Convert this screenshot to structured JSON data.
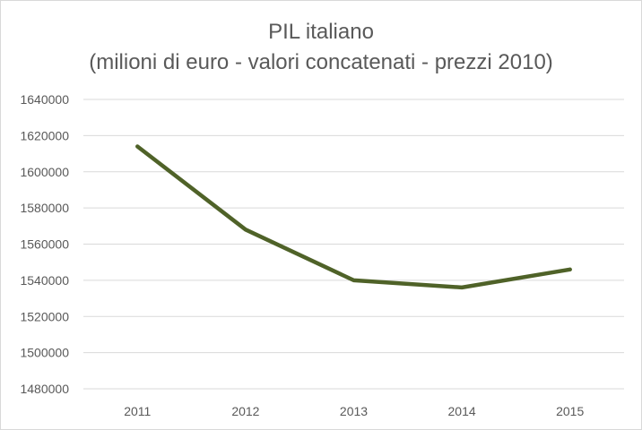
{
  "chart_data": {
    "type": "line",
    "title": "PIL italiano",
    "subtitle": "(milioni di euro - valori concatenati - prezzi 2010)",
    "xlabel": "",
    "ylabel": "",
    "categories": [
      "2011",
      "2012",
      "2013",
      "2014",
      "2015"
    ],
    "series": [
      {
        "name": "PIL italiano",
        "values": [
          1614000,
          1568000,
          1540000,
          1536000,
          1546000
        ],
        "color": "#4f6228"
      }
    ],
    "ylim": [
      1480000,
      1640000
    ],
    "yticks": [
      1480000,
      1500000,
      1520000,
      1540000,
      1560000,
      1580000,
      1600000,
      1620000,
      1640000
    ],
    "ytick_labels": [
      "1480000",
      "1500000",
      "1520000",
      "1540000",
      "1560000",
      "1580000",
      "1600000",
      "1620000",
      "1640000"
    ],
    "grid": true,
    "gridline_color": "#d9d9d9",
    "legend": "none"
  }
}
